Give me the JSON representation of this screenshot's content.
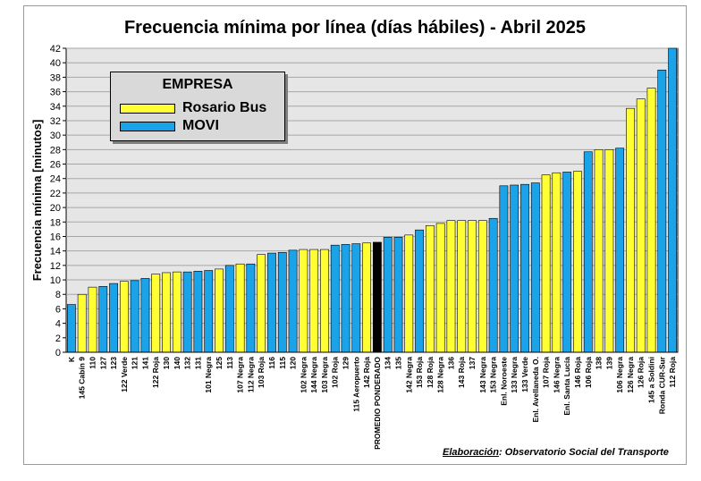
{
  "chart_data": {
    "type": "bar",
    "title": "Frecuencia mínima por línea (días hábiles) - Abril 2025",
    "xlabel": "",
    "ylabel": "Frecuencia mínima [minutos]",
    "ylim": [
      0,
      42
    ],
    "ytick_step": 2,
    "grid": true,
    "legend": {
      "title": "EMPRESA",
      "placement": "top-left",
      "entries": [
        {
          "label": "Rosario Bus",
          "color": "#ffff33"
        },
        {
          "label": "MOVI",
          "color": "#1aa3e8"
        }
      ]
    },
    "colors": {
      "Rosario Bus": "#ffff33",
      "MOVI": "#1aa3e8",
      "PROMEDIO": "#000000",
      "plot_bg": "#e6e6e6",
      "grid": "#a6a6a6"
    },
    "categories": [
      "K",
      "145 Cabín 9",
      "110",
      "127",
      "123",
      "122 Verde",
      "121",
      "141",
      "122 Roja",
      "130",
      "140",
      "132",
      "131",
      "101 Negra",
      "125",
      "113",
      "107 Negra",
      "112 Negra",
      "103 Roja",
      "116",
      "115",
      "120",
      "102 Negra",
      "144 Negra",
      "103 Negra",
      "102 Roja",
      "129",
      "115 Aeropuerto",
      "142 Roja",
      "PROMEDIO PONDERADO",
      "134",
      "135",
      "142 Negra",
      "153 Roja",
      "128 Roja",
      "128 Negra",
      "136",
      "143 Roja",
      "137",
      "143 Negra",
      "153 Negra",
      "Enl. Noroeste",
      "133 Negra",
      "133 Verde",
      "Enl. Avellaneda O.",
      "107 Roja",
      "146 Negra",
      "Enl. Santa Lucía",
      "146 Roja",
      "106 Roja",
      "138",
      "139",
      "106 Negra",
      "126 Negra",
      "126 Roja",
      "145 a Soldini",
      "Ronda CUR-Sur",
      "112 Roja"
    ],
    "values": [
      6.6,
      8,
      9,
      9.1,
      9.5,
      9.8,
      9.9,
      10.2,
      10.8,
      11,
      11.1,
      11.1,
      11.2,
      11.3,
      11.5,
      12,
      12.2,
      12.2,
      13.5,
      13.7,
      13.8,
      14.1,
      14.2,
      14.2,
      14.2,
      14.8,
      14.9,
      15.0,
      15.1,
      15.2,
      15.9,
      15.9,
      16.2,
      16.9,
      17.5,
      17.8,
      18.2,
      18.2,
      18.2,
      18.2,
      18.5,
      23.0,
      23.1,
      23.2,
      23.4,
      24.5,
      24.8,
      24.9,
      25.0,
      27.7,
      28.0,
      28.0,
      28.2,
      33.7,
      35.0,
      36.5,
      39.0,
      42.0
    ],
    "companies": [
      "MOVI",
      "Rosario Bus",
      "Rosario Bus",
      "MOVI",
      "MOVI",
      "Rosario Bus",
      "MOVI",
      "MOVI",
      "Rosario Bus",
      "Rosario Bus",
      "Rosario Bus",
      "MOVI",
      "MOVI",
      "MOVI",
      "Rosario Bus",
      "MOVI",
      "Rosario Bus",
      "MOVI",
      "Rosario Bus",
      "MOVI",
      "MOVI",
      "MOVI",
      "Rosario Bus",
      "Rosario Bus",
      "Rosario Bus",
      "MOVI",
      "MOVI",
      "MOVI",
      "Rosario Bus",
      "PROMEDIO",
      "MOVI",
      "MOVI",
      "Rosario Bus",
      "MOVI",
      "Rosario Bus",
      "Rosario Bus",
      "Rosario Bus",
      "Rosario Bus",
      "Rosario Bus",
      "Rosario Bus",
      "MOVI",
      "MOVI",
      "MOVI",
      "MOVI",
      "MOVI",
      "Rosario Bus",
      "Rosario Bus",
      "MOVI",
      "Rosario Bus",
      "MOVI",
      "Rosario Bus",
      "Rosario Bus",
      "MOVI",
      "Rosario Bus",
      "Rosario Bus",
      "Rosario Bus",
      "MOVI",
      "MOVI"
    ]
  },
  "credit": {
    "lead": "Elaboración",
    "rest": ": Observatorio Social del Transporte"
  }
}
